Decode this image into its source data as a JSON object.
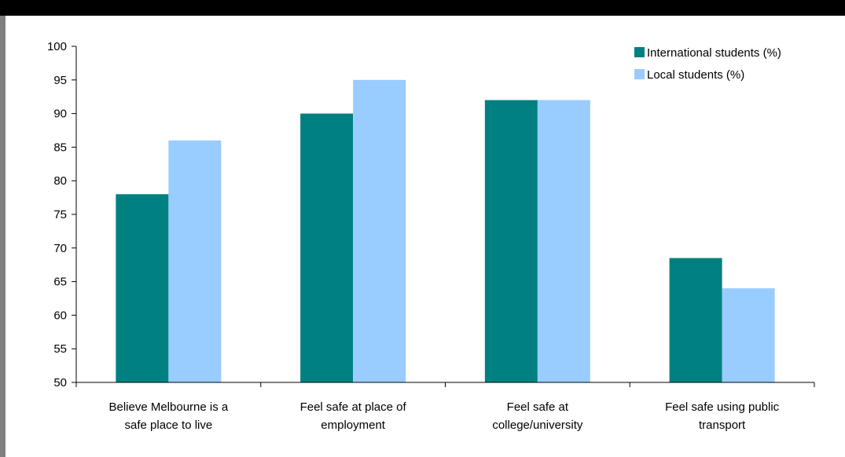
{
  "chart_data": {
    "type": "bar",
    "categories": [
      [
        "Believe Melbourne is a",
        "safe place to live"
      ],
      [
        "Feel safe at place of",
        "employment"
      ],
      [
        "Feel safe at",
        "college/university"
      ],
      [
        "Feel safe using public",
        "transport"
      ]
    ],
    "series": [
      {
        "name": "International students (%)",
        "color": "#008080",
        "values": [
          78,
          90,
          92,
          68.5
        ]
      },
      {
        "name": "Local students (%)",
        "color": "#99CCFF",
        "values": [
          86,
          95,
          92,
          64
        ]
      }
    ],
    "ylim": [
      50,
      100
    ],
    "yticks": [
      "50",
      "55",
      "60",
      "65",
      "70",
      "75",
      "80",
      "85",
      "90",
      "95",
      "100"
    ],
    "title": "",
    "xlabel": "",
    "ylabel": "",
    "grid": false,
    "legend_position": "top-right"
  },
  "colors": {
    "frame_top": "#000000",
    "frame_left": "#808080",
    "axis": "#000000"
  }
}
